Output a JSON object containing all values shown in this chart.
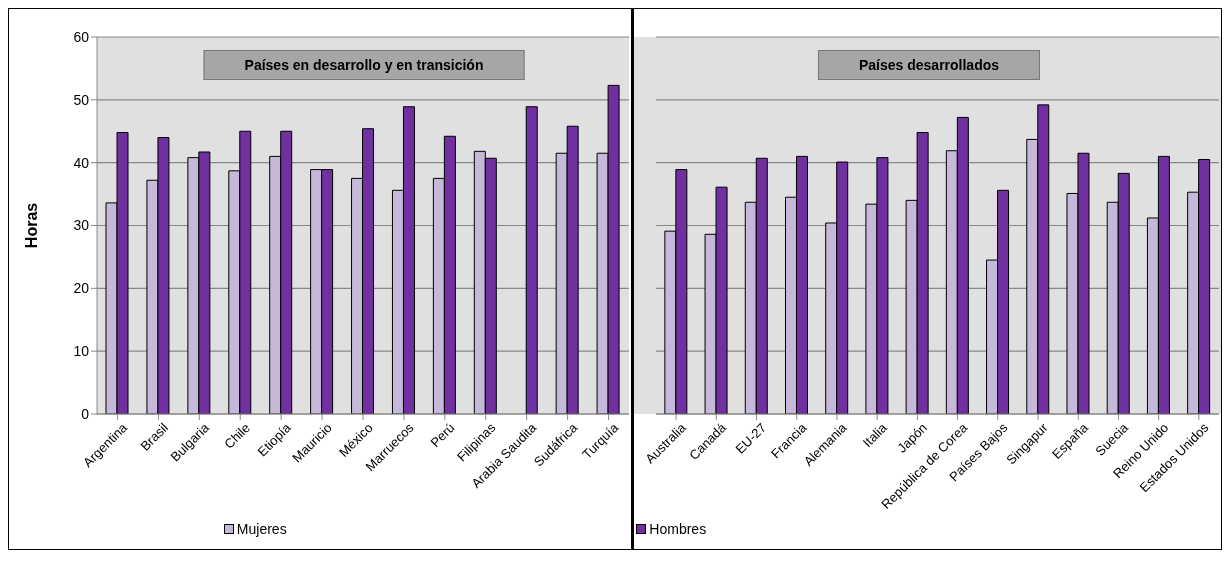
{
  "chart_data": [
    {
      "type": "bar",
      "title": "Países en desarrollo y en transición",
      "ylabel": "Horas",
      "categories": [
        "Argentina",
        "Brasil",
        "Bulgaria",
        "Chile",
        "Etiopía",
        "Mauricio",
        "México",
        "Marruecos",
        "Perú",
        "Filipinas",
        "Arabia Saudita",
        "Sudáfrica",
        "Turquía"
      ],
      "series": [
        {
          "name": "Mujeres",
          "color": "#c5b8d8",
          "values": [
            33.6,
            37.2,
            40.8,
            38.7,
            41.0,
            38.9,
            37.5,
            35.6,
            37.5,
            41.8,
            null,
            41.5,
            41.5
          ]
        },
        {
          "name": "Hombres",
          "color": "#7030a0",
          "values": [
            44.8,
            44.0,
            41.7,
            45.0,
            45.0,
            38.9,
            45.4,
            48.9,
            44.2,
            40.7,
            48.9,
            45.8,
            52.3
          ]
        }
      ],
      "ylim": [
        0,
        60
      ],
      "yticks": [
        0,
        10,
        20,
        30,
        40,
        50,
        60
      ],
      "grid": "y",
      "legend": "bottom"
    },
    {
      "type": "bar",
      "title": "Países desarrollados",
      "categories": [
        "Australia",
        "Canadá",
        "EU-27",
        "Francia",
        "Alemania",
        "Italia",
        "Japón",
        "República de Corea",
        "Países Bajos",
        "Singapur",
        "España",
        "Suecia",
        "Reino Unido",
        "Estados Unidos"
      ],
      "series": [
        {
          "color": "#c5b8d8",
          "values": [
            29.1,
            28.6,
            33.7,
            34.5,
            30.4,
            33.4,
            34.0,
            41.9,
            24.5,
            43.7,
            35.1,
            33.7,
            31.2,
            35.3
          ]
        },
        {
          "color": "#7030a0",
          "values": [
            38.9,
            36.1,
            40.7,
            41.0,
            40.1,
            40.8,
            44.8,
            47.2,
            35.6,
            49.2,
            41.5,
            38.3,
            41.0,
            40.5
          ]
        }
      ],
      "ylim": [
        0,
        60
      ],
      "yticks": [
        0,
        10,
        20,
        30,
        40,
        50,
        60
      ],
      "grid": "y",
      "tick_labels": "x"
    }
  ]
}
